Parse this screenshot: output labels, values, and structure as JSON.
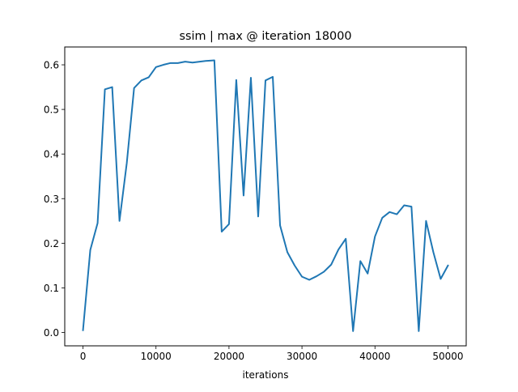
{
  "chart_data": {
    "type": "line",
    "title": "ssim | max @ iteration 18000",
    "xlabel": "iterations",
    "ylabel": "",
    "xlim": [
      -2500,
      52500
    ],
    "ylim": [
      -0.03,
      0.64
    ],
    "grid": false,
    "line_color": "#1f77b4",
    "x_ticks": [
      0,
      10000,
      20000,
      30000,
      40000,
      50000
    ],
    "x_tick_labels": [
      "0",
      "10000",
      "20000",
      "30000",
      "40000",
      "50000"
    ],
    "y_ticks": [
      0.0,
      0.1,
      0.2,
      0.3,
      0.4,
      0.5,
      0.6
    ],
    "y_tick_labels": [
      "0.0",
      "0.1",
      "0.2",
      "0.3",
      "0.4",
      "0.5",
      "0.6"
    ],
    "series": [
      {
        "x": [
          0,
          1000,
          2000,
          3000,
          4000,
          5000,
          6000,
          7000,
          8000,
          9000,
          10000,
          11000,
          12000,
          13000,
          14000,
          15000,
          16000,
          17000,
          18000,
          19000,
          20000,
          21000,
          22000,
          23000,
          24000,
          25000,
          26000,
          27000,
          28000,
          29000,
          30000,
          31000,
          32000,
          33000,
          34000,
          35000,
          36000,
          37000,
          38000,
          39000,
          40000,
          41000,
          42000,
          43000,
          44000,
          45000,
          46000,
          47000,
          48000,
          49000,
          50000
        ],
        "y": [
          0.005,
          0.185,
          0.245,
          0.545,
          0.55,
          0.25,
          0.38,
          0.548,
          0.565,
          0.572,
          0.595,
          0.6,
          0.604,
          0.604,
          0.607,
          0.605,
          0.607,
          0.609,
          0.61,
          0.226,
          0.243,
          0.566,
          0.307,
          0.571,
          0.26,
          0.565,
          0.573,
          0.24,
          0.18,
          0.15,
          0.125,
          0.118,
          0.126,
          0.136,
          0.152,
          0.186,
          0.21,
          0.003,
          0.16,
          0.132,
          0.215,
          0.257,
          0.27,
          0.265,
          0.285,
          0.282,
          0.003,
          0.25,
          0.18,
          0.12,
          0.15
        ]
      }
    ]
  }
}
